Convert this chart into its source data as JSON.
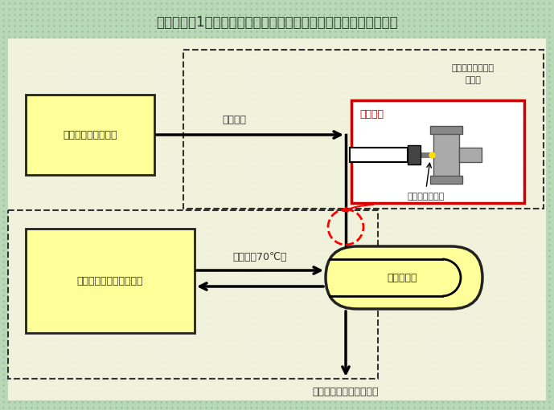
{
  "title": "伊方発電所1号機　非常用ディーゼル発電機用補助蒸気系統概略図",
  "bg_color": "#b8d8b8",
  "title_fontsize": 12,
  "steam_converter_label": "スチームコンバータ",
  "diesel_engine_label": "ディーゼル発電機　機関",
  "heater_label": "清水加熱器",
  "steam_flow_label": "補助蒸気",
  "warm_water_label": "温水（約70℃）",
  "drain_label": "補助蒸気ドレンタンクへ",
  "diesel_gen_label1": "非常用ディーゼル",
  "diesel_gen_label2": "発電機",
  "toukasho_label": "当該箇所",
  "thermometer_label": "温度計のさや管",
  "label_color": "#333333",
  "box_fill": "#ffff99",
  "box_edge": "#222222",
  "dashed_box_color": "#333333",
  "red_box_color": "#cc0000",
  "red_text_color": "#cc0000",
  "inner_bg": "#f5f5e0"
}
